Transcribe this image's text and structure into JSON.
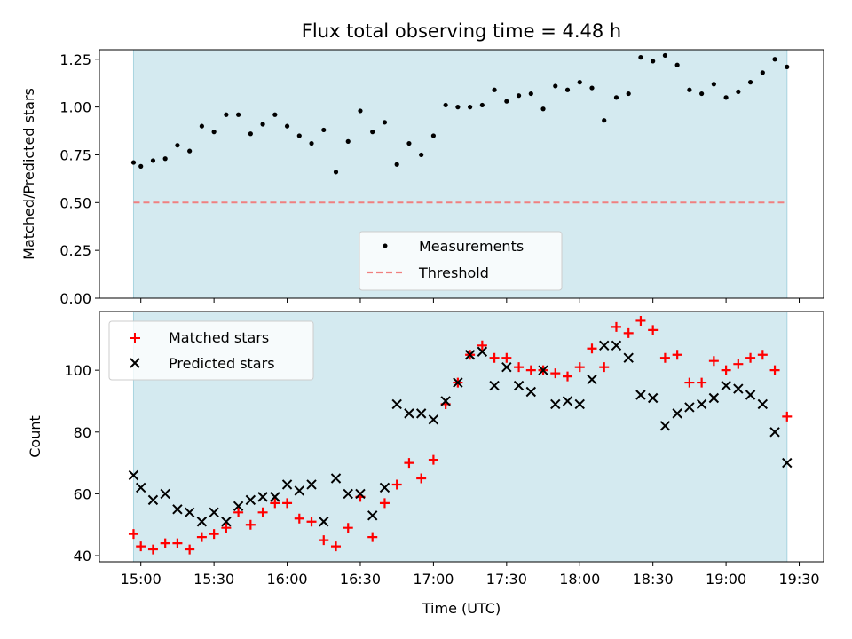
{
  "title": "Flux total observing time = 4.48 h",
  "colors": {
    "background_span": "#d4eaf0",
    "background_span_edge": "#a8d4e0",
    "measurements": "#000000",
    "threshold": "#f08080",
    "matched": "#ff0000",
    "predicted": "#000000"
  },
  "chart_data": [
    {
      "type": "scatter",
      "ylabel": "Matched/Predicted stars",
      "ylim": [
        0,
        1.3
      ],
      "yticks": [
        "0.00",
        "0.25",
        "0.50",
        "0.75",
        "1.00",
        "1.25"
      ],
      "grid": false,
      "legend": {
        "placement": "lower-center",
        "entries": [
          "Measurements",
          "Threshold"
        ]
      },
      "threshold": {
        "name": "Threshold",
        "value": 0.5
      },
      "span": [
        "14:57",
        "19:25"
      ],
      "series": [
        {
          "name": "Measurements",
          "x": [
            "14:57",
            "15:00",
            "15:05",
            "15:10",
            "15:15",
            "15:20",
            "15:25",
            "15:30",
            "15:35",
            "15:40",
            "15:45",
            "15:50",
            "15:55",
            "16:00",
            "16:05",
            "16:10",
            "16:15",
            "16:20",
            "16:25",
            "16:30",
            "16:35",
            "16:40",
            "16:45",
            "16:50",
            "16:55",
            "17:00",
            "17:05",
            "17:10",
            "17:15",
            "17:20",
            "17:25",
            "17:30",
            "17:35",
            "17:40",
            "17:45",
            "17:50",
            "17:55",
            "18:00",
            "18:05",
            "18:10",
            "18:15",
            "18:20",
            "18:25",
            "18:30",
            "18:35",
            "18:40",
            "18:45",
            "18:50",
            "18:55",
            "19:00",
            "19:05",
            "19:10",
            "19:15",
            "19:20",
            "19:25"
          ],
          "y": [
            0.71,
            0.69,
            0.72,
            0.73,
            0.8,
            0.77,
            0.9,
            0.87,
            0.96,
            0.96,
            0.86,
            0.91,
            0.96,
            0.9,
            0.85,
            0.81,
            0.88,
            0.66,
            0.82,
            0.98,
            0.87,
            0.92,
            0.7,
            0.81,
            0.75,
            0.85,
            1.01,
            1.0,
            1.0,
            1.01,
            1.09,
            1.03,
            1.06,
            1.07,
            0.99,
            1.11,
            1.09,
            1.13,
            1.1,
            0.93,
            1.05,
            1.07,
            1.26,
            1.24,
            1.27,
            1.22,
            1.09,
            1.07,
            1.12,
            1.05,
            1.08,
            1.13,
            1.18,
            1.25,
            1.21
          ]
        }
      ]
    },
    {
      "type": "scatter",
      "xlabel": "Time (UTC)",
      "ylabel": "Count",
      "ylim": [
        38,
        119
      ],
      "yticks": [
        "40",
        "60",
        "80",
        "100"
      ],
      "xticks": [
        "15:00",
        "15:30",
        "16:00",
        "16:30",
        "17:00",
        "17:30",
        "18:00",
        "18:30",
        "19:00",
        "19:30"
      ],
      "xlim": [
        "14:43",
        "19:40"
      ],
      "grid": false,
      "legend": {
        "placement": "upper-left",
        "entries": [
          "Matched stars",
          "Predicted stars"
        ]
      },
      "span": [
        "14:57",
        "19:25"
      ],
      "series": [
        {
          "name": "Matched stars",
          "x": [
            "14:57",
            "15:00",
            "15:05",
            "15:10",
            "15:15",
            "15:20",
            "15:25",
            "15:30",
            "15:35",
            "15:40",
            "15:45",
            "15:50",
            "15:55",
            "16:00",
            "16:05",
            "16:10",
            "16:15",
            "16:20",
            "16:25",
            "16:30",
            "16:35",
            "16:40",
            "16:45",
            "16:50",
            "16:55",
            "17:00",
            "17:05",
            "17:10",
            "17:15",
            "17:20",
            "17:25",
            "17:30",
            "17:35",
            "17:40",
            "17:45",
            "17:50",
            "17:55",
            "18:00",
            "18:05",
            "18:10",
            "18:15",
            "18:20",
            "18:25",
            "18:30",
            "18:35",
            "18:40",
            "18:45",
            "18:50",
            "18:55",
            "19:00",
            "19:05",
            "19:10",
            "19:15",
            "19:20",
            "19:25"
          ],
          "y": [
            47,
            43,
            42,
            44,
            44,
            42,
            46,
            47,
            49,
            54,
            50,
            54,
            57,
            57,
            52,
            51,
            45,
            43,
            49,
            59,
            46,
            57,
            63,
            70,
            65,
            71,
            89,
            96,
            105,
            108,
            104,
            104,
            101,
            100,
            100,
            99,
            98,
            101,
            107,
            101,
            114,
            112,
            116,
            113,
            104,
            105,
            96,
            96,
            103,
            100,
            102,
            104,
            105,
            100,
            85
          ]
        },
        {
          "name": "Predicted stars",
          "x": [
            "14:57",
            "15:00",
            "15:05",
            "15:10",
            "15:15",
            "15:20",
            "15:25",
            "15:30",
            "15:35",
            "15:40",
            "15:45",
            "15:50",
            "15:55",
            "16:00",
            "16:05",
            "16:10",
            "16:15",
            "16:20",
            "16:25",
            "16:30",
            "16:35",
            "16:40",
            "16:45",
            "16:50",
            "16:55",
            "17:00",
            "17:05",
            "17:10",
            "17:15",
            "17:20",
            "17:25",
            "17:30",
            "17:35",
            "17:40",
            "17:45",
            "17:50",
            "17:55",
            "18:00",
            "18:05",
            "18:10",
            "18:15",
            "18:20",
            "18:25",
            "18:30",
            "18:35",
            "18:40",
            "18:45",
            "18:50",
            "18:55",
            "19:00",
            "19:05",
            "19:10",
            "19:15",
            "19:20",
            "19:25"
          ],
          "y": [
            66,
            62,
            58,
            60,
            55,
            54,
            51,
            54,
            51,
            56,
            58,
            59,
            59,
            63,
            61,
            63,
            51,
            65,
            60,
            60,
            53,
            62,
            89,
            86,
            86,
            84,
            90,
            96,
            105,
            106,
            95,
            101,
            95,
            93,
            100,
            89,
            90,
            89,
            97,
            108,
            108,
            104,
            92,
            91,
            82,
            86,
            88,
            89,
            91,
            95,
            94,
            92,
            89,
            80,
            70
          ]
        }
      ]
    }
  ]
}
